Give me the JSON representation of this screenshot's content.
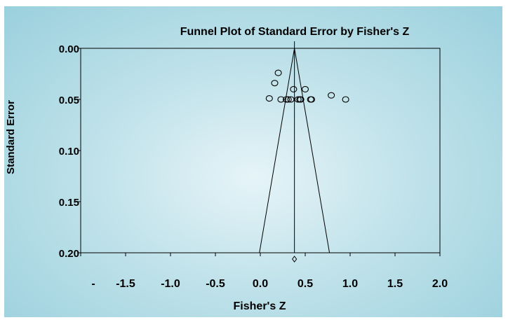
{
  "chart_data": {
    "type": "scatter",
    "title": "Funnel Plot of Standard Error by Fisher's Z",
    "xlabel": "Fisher's Z",
    "ylabel": "Standard Error",
    "xlim": [
      -2.0,
      2.0
    ],
    "ylim": [
      0.0,
      0.2
    ],
    "y_inverted": true,
    "x_tick_labels": [
      "-",
      "-1.5",
      "-1.0",
      "-0.5",
      "0.0",
      "0.5",
      "1.0",
      "1.5",
      "2.0"
    ],
    "x_tick_values": [
      -2.0,
      -1.5,
      -1.0,
      -0.5,
      0.0,
      0.5,
      1.0,
      1.5,
      2.0
    ],
    "y_tick_labels": [
      "0.00",
      "0.05",
      "0.10",
      "0.15",
      "0.20"
    ],
    "y_tick_values": [
      0.0,
      0.05,
      0.1,
      0.15,
      0.2
    ],
    "pooled_estimate": 0.38,
    "funnel_base": [
      -0.01,
      0.77
    ],
    "points": [
      {
        "x": 0.2,
        "y": 0.024
      },
      {
        "x": 0.16,
        "y": 0.034
      },
      {
        "x": 0.37,
        "y": 0.04
      },
      {
        "x": 0.5,
        "y": 0.04
      },
      {
        "x": 0.79,
        "y": 0.046
      },
      {
        "x": 0.1,
        "y": 0.049
      },
      {
        "x": 0.23,
        "y": 0.05
      },
      {
        "x": 0.29,
        "y": 0.05
      },
      {
        "x": 0.31,
        "y": 0.05
      },
      {
        "x": 0.34,
        "y": 0.05
      },
      {
        "x": 0.42,
        "y": 0.05
      },
      {
        "x": 0.44,
        "y": 0.05
      },
      {
        "x": 0.45,
        "y": 0.05
      },
      {
        "x": 0.56,
        "y": 0.05
      },
      {
        "x": 0.57,
        "y": 0.05
      },
      {
        "x": 0.95,
        "y": 0.05
      }
    ],
    "grid": false,
    "legend": "none"
  }
}
